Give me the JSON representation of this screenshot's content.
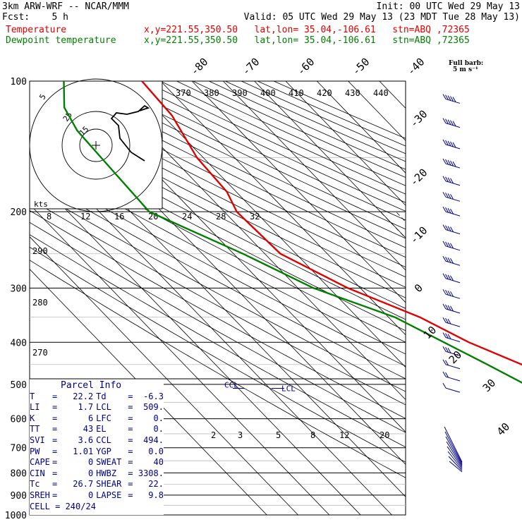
{
  "header": {
    "model": "3km ARW-WRF -- NCAR/MMM",
    "init": "Init: 00 UTC Wed 29 May 13",
    "fcst": "Fcst:    5 h",
    "valid": "Valid: 05 UTC Wed 29 May 13 (23 MDT Tue 28 May 13)",
    "temp_label": "Temperature",
    "temp_loc": "x,y=221.55,350.50   lat,lon= 35.04,-106.61   stn=ABQ ,72365",
    "dew_label": "Dewpoint temperature",
    "dew_loc": "x,y=221.55,350.50   lat,lon= 35.04,-106.61   stn=ABQ ,72365"
  },
  "colors": {
    "temperature": "#e00000",
    "dewpoint": "#008000",
    "parcel_text": "#00008b",
    "hodograph": "#000000",
    "barbs": "#00008b"
  },
  "full_barb": {
    "line1": "Full barb:",
    "line2": "5 m s⁻¹"
  },
  "parcel_info": {
    "title": "Parcel Info",
    "rows": [
      [
        "T",
        "22.2",
        "Td",
        "-6.3"
      ],
      [
        "LI",
        "1.7",
        "LCL",
        "509."
      ],
      [
        "K",
        "6",
        "LFC",
        "0."
      ],
      [
        "TT",
        "43",
        "EL",
        "0."
      ],
      [
        "SVI",
        "3.6",
        "CCL",
        "494."
      ],
      [
        "PW",
        "1.01",
        "YGP",
        "0.0"
      ],
      [
        "CAPE",
        "0",
        "SWEAT",
        "40"
      ],
      [
        "CIN",
        "0",
        "HWBZ",
        "3308."
      ],
      [
        "Tc",
        "26.7",
        "SHEAR",
        "22."
      ],
      [
        "SREH",
        "0",
        "LAPSE",
        "9.8"
      ]
    ],
    "cell": "CELL = 240/24"
  },
  "chart_data": {
    "type": "line",
    "chart_kind": "skew-T log-p",
    "y_axis": {
      "label": "pressure (hPa)",
      "scale": "log",
      "ticks": [
        100,
        200,
        300,
        400,
        500,
        600,
        700,
        800,
        900,
        1000
      ]
    },
    "isotherm_labels": [
      "-80",
      "-70",
      "-60",
      "-50",
      "-40",
      "-30",
      "-20",
      "-10",
      "0",
      "10",
      "20",
      "30",
      "40"
    ],
    "theta_labels": [
      "370",
      "380",
      "390",
      "400",
      "410",
      "420",
      "430",
      "440"
    ],
    "theta_side_labels": [
      "290",
      "280",
      "270"
    ],
    "mixing_ratio_labels": [
      "2",
      "3",
      "5",
      "8",
      "12",
      "20"
    ],
    "hodograph": {
      "units_label": "kts",
      "ring_labels": [
        "5",
        "25",
        "15"
      ],
      "axis_labels": [
        "8",
        "12",
        "16",
        "20",
        "24",
        "28",
        "32"
      ]
    },
    "lcl_labels": [
      "CCL",
      "LCL"
    ],
    "series": [
      {
        "name": "Temperature",
        "color": "#e00000",
        "points": [
          [
            100,
            -46
          ],
          [
            120,
            -47
          ],
          [
            150,
            -52
          ],
          [
            180,
            -53
          ],
          [
            200,
            -56
          ],
          [
            250,
            -55
          ],
          [
            300,
            -44
          ],
          [
            350,
            -30
          ],
          [
            400,
            -22
          ],
          [
            450,
            -12
          ],
          [
            500,
            -10
          ],
          [
            550,
            0
          ],
          [
            600,
            6
          ],
          [
            650,
            12
          ],
          [
            700,
            16
          ],
          [
            750,
            20
          ],
          [
            780,
            22
          ],
          [
            800,
            22.2
          ]
        ]
      },
      {
        "name": "Dewpoint temperature",
        "color": "#008000",
        "points": [
          [
            100,
            -71
          ],
          [
            115,
            -79
          ],
          [
            130,
            -82
          ],
          [
            160,
            -83
          ],
          [
            200,
            -84
          ],
          [
            250,
            -67
          ],
          [
            300,
            -55
          ],
          [
            350,
            -38
          ],
          [
            400,
            -30
          ],
          [
            450,
            -23
          ],
          [
            500,
            -17
          ],
          [
            600,
            -21
          ],
          [
            700,
            -20
          ],
          [
            750,
            -11
          ],
          [
            800,
            -6.3
          ]
        ]
      }
    ],
    "wind_barbs": [
      {
        "p": 110,
        "speed_ms": 25
      },
      {
        "p": 125,
        "speed_ms": 25
      },
      {
        "p": 140,
        "speed_ms": 25
      },
      {
        "p": 155,
        "speed_ms": 25
      },
      {
        "p": 170,
        "speed_ms": 20
      },
      {
        "p": 185,
        "speed_ms": 20
      },
      {
        "p": 200,
        "speed_ms": 20
      },
      {
        "p": 220,
        "speed_ms": 20
      },
      {
        "p": 240,
        "speed_ms": 20
      },
      {
        "p": 260,
        "speed_ms": 20
      },
      {
        "p": 285,
        "speed_ms": 20
      },
      {
        "p": 310,
        "speed_ms": 20
      },
      {
        "p": 335,
        "speed_ms": 20
      },
      {
        "p": 360,
        "speed_ms": 15
      },
      {
        "p": 390,
        "speed_ms": 15
      },
      {
        "p": 420,
        "speed_ms": 15
      },
      {
        "p": 450,
        "speed_ms": 10
      },
      {
        "p": 480,
        "speed_ms": 10
      },
      {
        "p": 510,
        "speed_ms": 5
      }
    ]
  }
}
